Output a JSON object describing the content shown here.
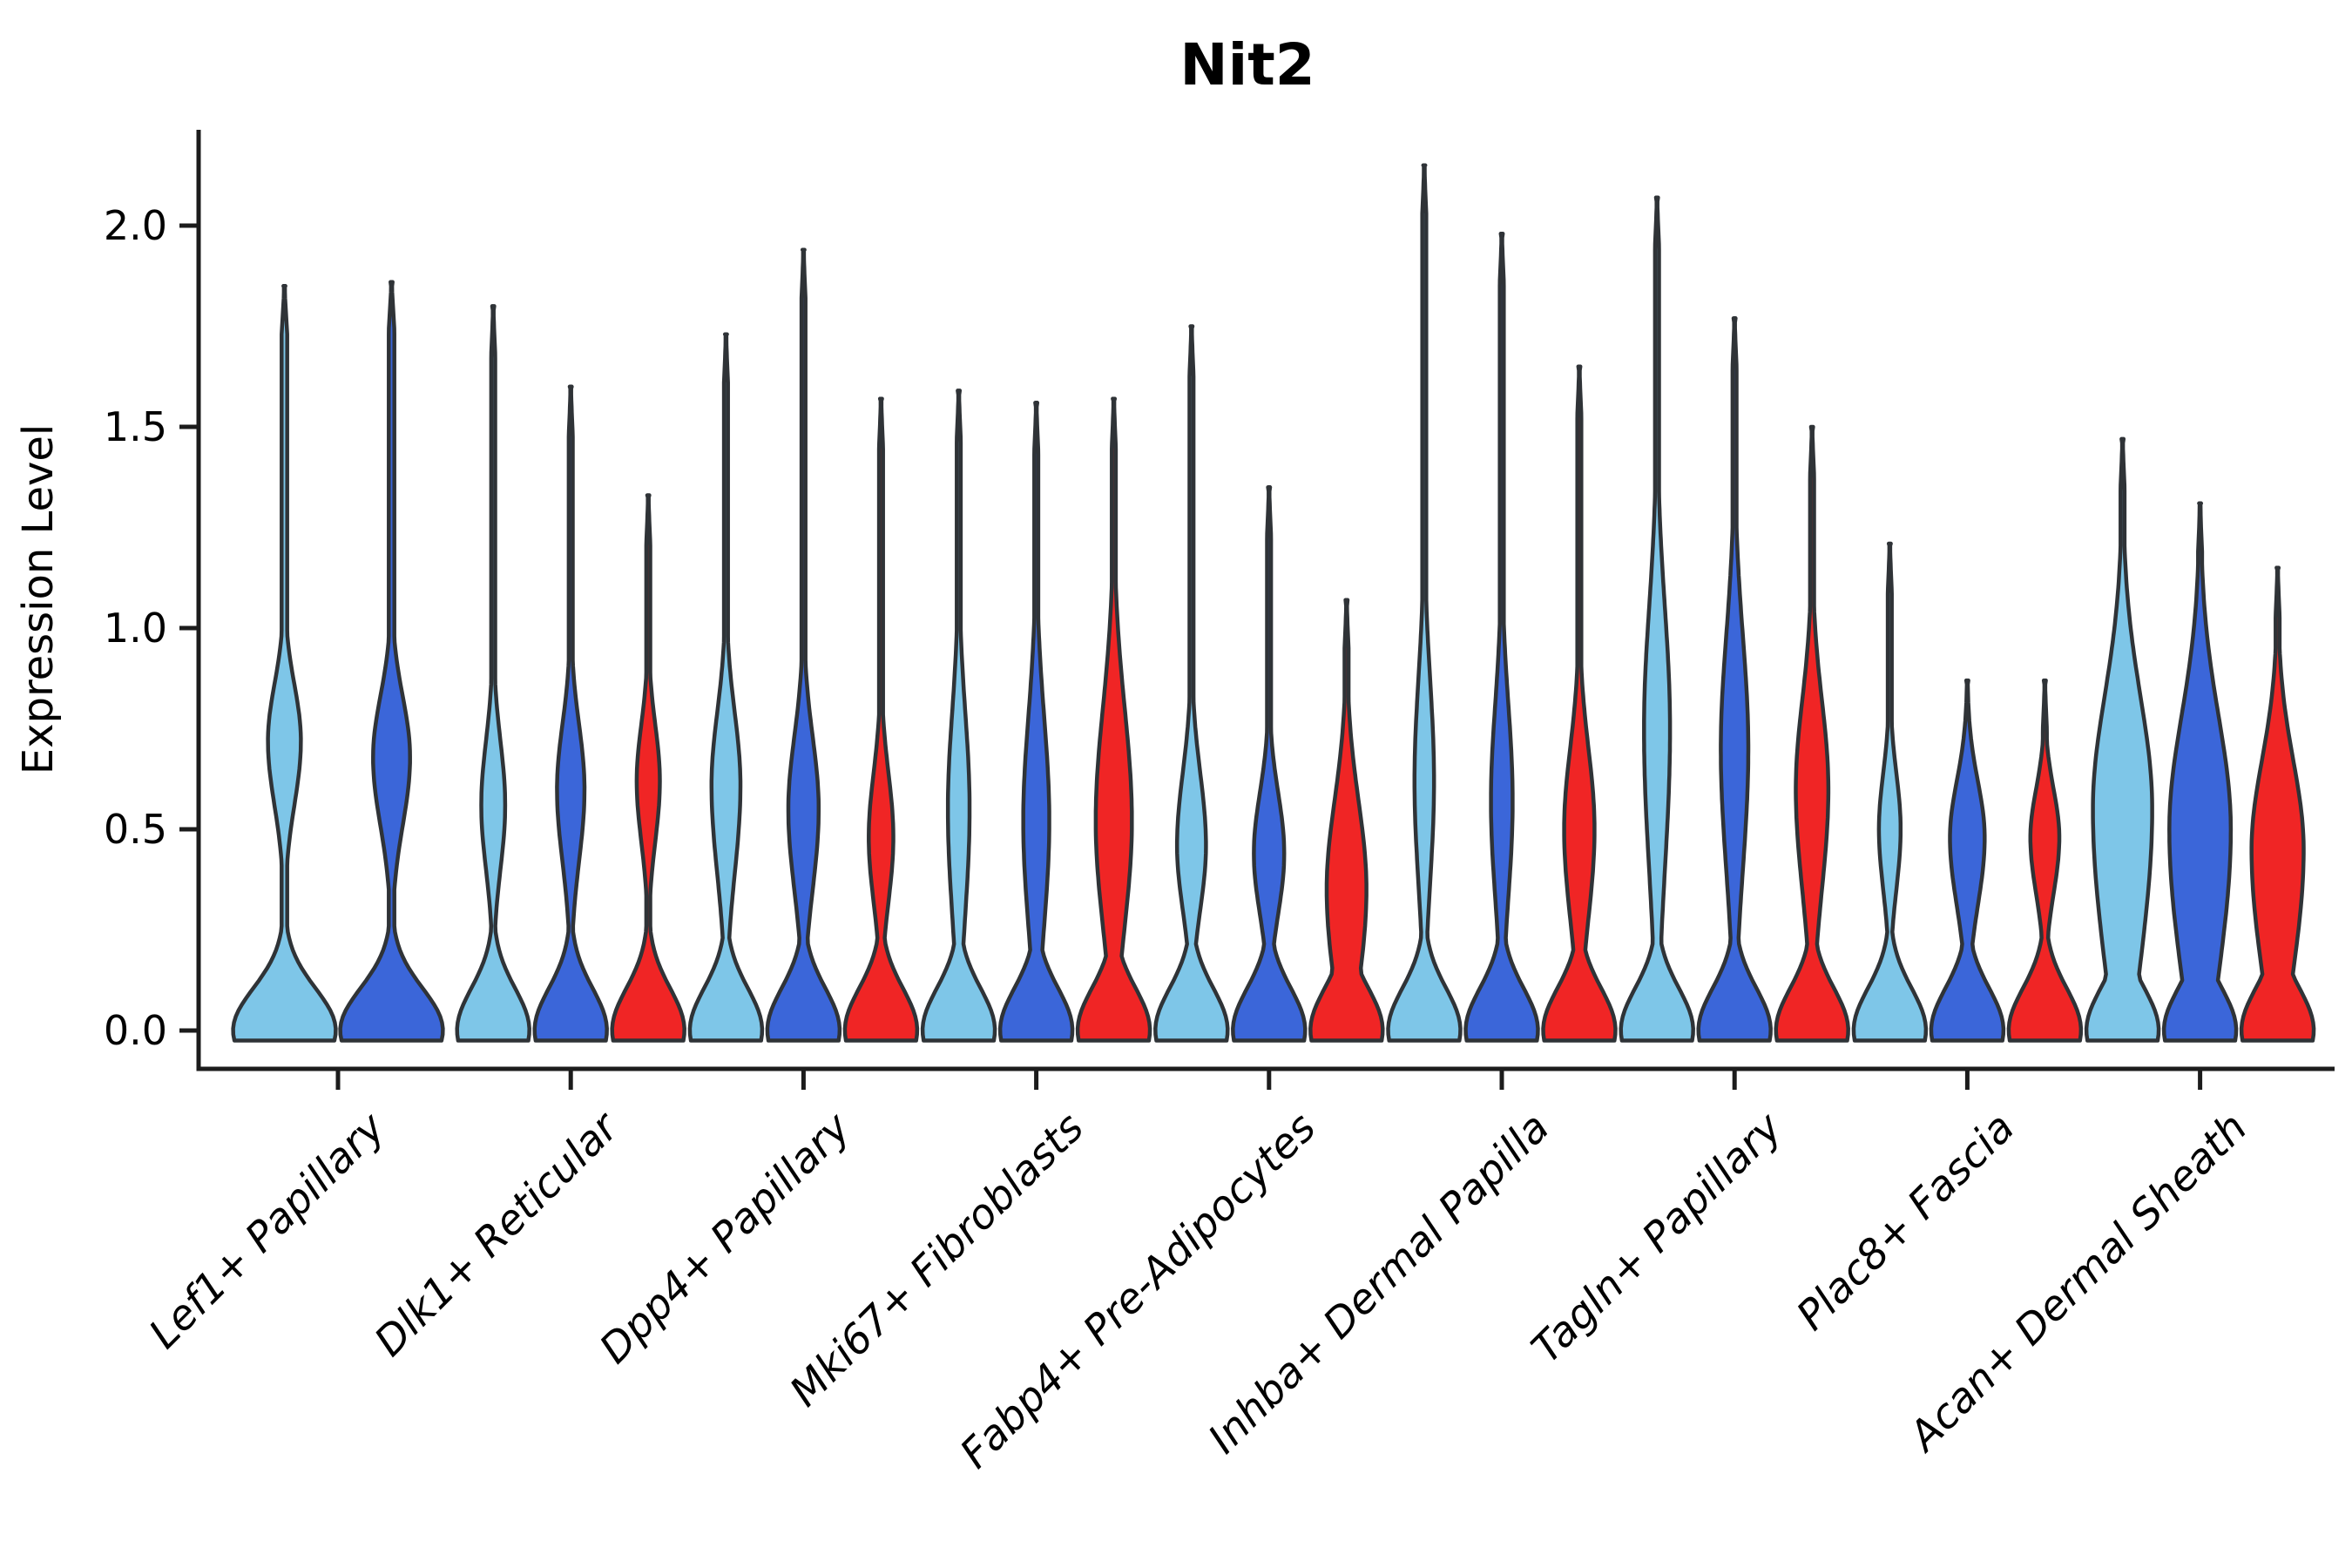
{
  "chart_data": {
    "type": "violin",
    "title": "Nit2",
    "ylabel": "Expression Level",
    "xlabel": "",
    "y_ticks": [
      0.0,
      0.5,
      1.0,
      1.5,
      2.0
    ],
    "y_tick_labels": [
      "0.0",
      "0.5",
      "1.0",
      "1.5",
      "2.0"
    ],
    "ylim": [
      -0.09,
      2.24
    ],
    "grid": false,
    "legend": "none",
    "categories": [
      "Lef1+ Papillary",
      "Dlk1+ Reticular",
      "Dpp4+ Papillary",
      "Mki67+ Fibroblasts",
      "Fabp4+ Pre-Adipocytes",
      "Inhba+ Dermal Papilla",
      "Tagln+ Papillary",
      "Plac8+ Fascia",
      "Acan+ Dermal Sheath"
    ],
    "colors": {
      "light": "#7EC6E8",
      "dark": "#3B66D9",
      "red": "#F02525",
      "outline": "#2F3337",
      "axis": "#1c1c1c",
      "text": "#000000"
    },
    "groups": [
      {
        "category": "Lef1+ Papillary",
        "violins": [
          {
            "color": "light",
            "peak": 1.85,
            "bulge_center": 0.72,
            "s_lo": 0.16,
            "s_hi": 0.14,
            "amp": 0.32
          },
          {
            "color": "dark",
            "peak": 1.86,
            "bulge_center": 0.68,
            "s_lo": 0.17,
            "s_hi": 0.15,
            "amp": 0.36
          }
        ]
      },
      {
        "category": "Dlk1+ Reticular",
        "violins": [
          {
            "color": "light",
            "peak": 1.8,
            "bulge_center": 0.56,
            "s_lo": 0.16,
            "s_hi": 0.16,
            "amp": 0.33
          },
          {
            "color": "dark",
            "peak": 1.6,
            "bulge_center": 0.6,
            "s_lo": 0.18,
            "s_hi": 0.16,
            "amp": 0.38
          },
          {
            "color": "red",
            "peak": 1.33,
            "bulge_center": 0.62,
            "s_lo": 0.15,
            "s_hi": 0.14,
            "amp": 0.32
          }
        ]
      },
      {
        "category": "Dpp4+ Papillary",
        "violins": [
          {
            "color": "light",
            "peak": 1.73,
            "bulge_center": 0.61,
            "s_lo": 0.22,
            "s_hi": 0.18,
            "amp": 0.4
          },
          {
            "color": "dark",
            "peak": 1.94,
            "bulge_center": 0.55,
            "s_lo": 0.2,
            "s_hi": 0.18,
            "amp": 0.42
          },
          {
            "color": "red",
            "peak": 1.57,
            "bulge_center": 0.48,
            "s_lo": 0.16,
            "s_hi": 0.16,
            "amp": 0.34
          }
        ]
      },
      {
        "category": "Mki67+ Fibroblasts",
        "violins": [
          {
            "color": "light",
            "peak": 1.59,
            "bulge_center": 0.55,
            "s_lo": 0.26,
            "s_hi": 0.24,
            "amp": 0.3
          },
          {
            "color": "dark",
            "peak": 1.56,
            "bulge_center": 0.52,
            "s_lo": 0.26,
            "s_hi": 0.26,
            "amp": 0.36
          },
          {
            "color": "red",
            "peak": 1.57,
            "bulge_center": 0.52,
            "s_lo": 0.26,
            "s_hi": 0.28,
            "amp": 0.5
          }
        ]
      },
      {
        "category": "Fabp4+ Pre-Adipocytes",
        "violins": [
          {
            "color": "light",
            "peak": 1.75,
            "bulge_center": 0.46,
            "s_lo": 0.16,
            "s_hi": 0.18,
            "amp": 0.4
          },
          {
            "color": "dark",
            "peak": 1.35,
            "bulge_center": 0.44,
            "s_lo": 0.15,
            "s_hi": 0.15,
            "amp": 0.42
          },
          {
            "color": "red",
            "peak": 1.07,
            "bulge_center": 0.35,
            "s_lo": 0.24,
            "s_hi": 0.22,
            "amp": 0.55
          }
        ]
      },
      {
        "category": "Inhba+ Dermal Papilla",
        "violins": [
          {
            "color": "light",
            "peak": 2.15,
            "bulge_center": 0.62,
            "s_lo": 0.25,
            "s_hi": 0.25,
            "amp": 0.27
          },
          {
            "color": "dark",
            "peak": 1.98,
            "bulge_center": 0.57,
            "s_lo": 0.24,
            "s_hi": 0.24,
            "amp": 0.3
          },
          {
            "color": "red",
            "peak": 1.65,
            "bulge_center": 0.5,
            "s_lo": 0.22,
            "s_hi": 0.2,
            "amp": 0.42
          }
        ]
      },
      {
        "category": "Tagln+ Papillary",
        "violins": [
          {
            "color": "light",
            "peak": 2.07,
            "bulge_center": 0.75,
            "s_lo": 0.35,
            "s_hi": 0.3,
            "amp": 0.36
          },
          {
            "color": "dark",
            "peak": 1.77,
            "bulge_center": 0.7,
            "s_lo": 0.3,
            "s_hi": 0.28,
            "amp": 0.38
          },
          {
            "color": "red",
            "peak": 1.5,
            "bulge_center": 0.6,
            "s_lo": 0.25,
            "s_hi": 0.22,
            "amp": 0.45
          }
        ]
      },
      {
        "category": "Plac8+ Fascia",
        "violins": [
          {
            "color": "light",
            "peak": 1.21,
            "bulge_center": 0.5,
            "s_lo": 0.15,
            "s_hi": 0.14,
            "amp": 0.3
          },
          {
            "color": "dark",
            "peak": 0.87,
            "bulge_center": 0.48,
            "s_lo": 0.17,
            "s_hi": 0.14,
            "amp": 0.48
          },
          {
            "color": "red",
            "peak": 0.87,
            "bulge_center": 0.48,
            "s_lo": 0.14,
            "s_hi": 0.12,
            "amp": 0.4
          }
        ]
      },
      {
        "category": "Acan+ Dermal Sheath",
        "violins": [
          {
            "color": "light",
            "peak": 1.47,
            "bulge_center": 0.55,
            "s_lo": 0.38,
            "s_hi": 0.28,
            "amp": 0.82
          },
          {
            "color": "dark",
            "peak": 1.31,
            "bulge_center": 0.5,
            "s_lo": 0.36,
            "s_hi": 0.28,
            "amp": 0.85
          },
          {
            "color": "red",
            "peak": 1.15,
            "bulge_center": 0.45,
            "s_lo": 0.3,
            "s_hi": 0.22,
            "amp": 0.72
          }
        ]
      }
    ]
  }
}
